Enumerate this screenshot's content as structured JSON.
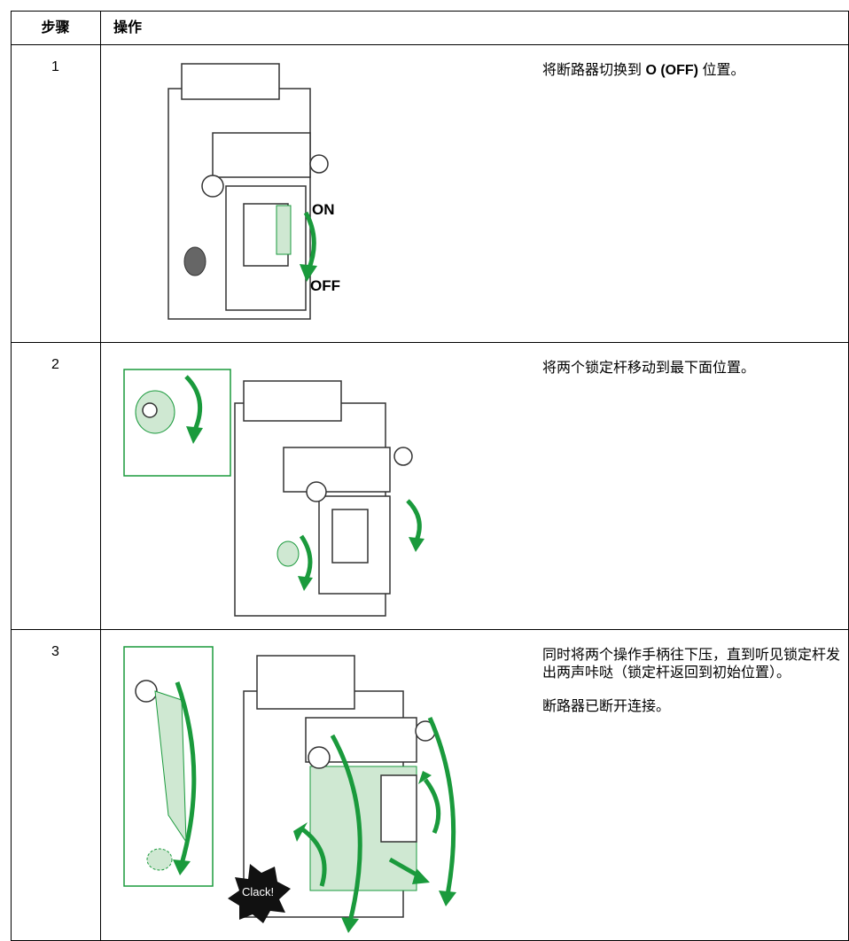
{
  "table": {
    "header": [
      "步骤",
      "操作"
    ],
    "rows": [
      {
        "step": "1",
        "paragraphs": [
          [
            "将断路器切换到 ",
            {
              "bold": "O (OFF)"
            },
            " 位置。"
          ]
        ],
        "labels": [
          "ON",
          "OFF"
        ]
      },
      {
        "step": "2",
        "paragraphs": [
          [
            "将两个锁定杆移动到最下面位置。"
          ]
        ]
      },
      {
        "step": "3",
        "paragraphs": [
          [
            "同时将两个操作手柄往下压，直到听见锁定杆发出两声咔哒（锁定杆返回到初始位置）。"
          ],
          [
            "断路器已断开连接。"
          ]
        ],
        "labels": [
          "Clack!"
        ]
      }
    ]
  }
}
